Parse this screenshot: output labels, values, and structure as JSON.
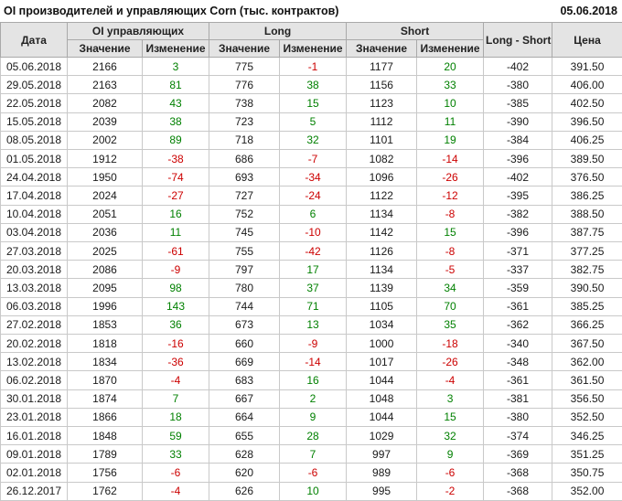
{
  "page": {
    "title": "OI производителей и управляющих Corn (тыс. контрактов)",
    "report_date": "05.06.2018"
  },
  "colors": {
    "positive": "#008000",
    "negative": "#cc0000",
    "header_bg": "#e4e4e4",
    "header_border": "#a9a9a9",
    "grid_border": "#c9c9c9",
    "text": "#1a1a1a"
  },
  "table": {
    "group_headers": {
      "date": "Дата",
      "oi": "OI управляющих",
      "long": "Long",
      "short": "Short",
      "long_short": "Long - Short",
      "price": "Цена"
    },
    "sub_headers": {
      "value": "Значение",
      "change": "Изменение"
    },
    "cell_names": [
      "date-cell",
      "oi-value-cell",
      "oi-change-cell",
      "long-value-cell",
      "long-change-cell",
      "short-value-cell",
      "short-change-cell",
      "long-short-cell",
      "price-cell"
    ],
    "change_column_indexes": [
      2,
      4,
      6
    ],
    "rows": [
      [
        "05.06.2018",
        "2166",
        "3",
        "775",
        "-1",
        "1177",
        "20",
        "-402",
        "391.50"
      ],
      [
        "29.05.2018",
        "2163",
        "81",
        "776",
        "38",
        "1156",
        "33",
        "-380",
        "406.00"
      ],
      [
        "22.05.2018",
        "2082",
        "43",
        "738",
        "15",
        "1123",
        "10",
        "-385",
        "402.50"
      ],
      [
        "15.05.2018",
        "2039",
        "38",
        "723",
        "5",
        "1112",
        "11",
        "-390",
        "396.50"
      ],
      [
        "08.05.2018",
        "2002",
        "89",
        "718",
        "32",
        "1101",
        "19",
        "-384",
        "406.25"
      ],
      [
        "01.05.2018",
        "1912",
        "-38",
        "686",
        "-7",
        "1082",
        "-14",
        "-396",
        "389.50"
      ],
      [
        "24.04.2018",
        "1950",
        "-74",
        "693",
        "-34",
        "1096",
        "-26",
        "-402",
        "376.50"
      ],
      [
        "17.04.2018",
        "2024",
        "-27",
        "727",
        "-24",
        "1122",
        "-12",
        "-395",
        "386.25"
      ],
      [
        "10.04.2018",
        "2051",
        "16",
        "752",
        "6",
        "1134",
        "-8",
        "-382",
        "388.50"
      ],
      [
        "03.04.2018",
        "2036",
        "11",
        "745",
        "-10",
        "1142",
        "15",
        "-396",
        "387.75"
      ],
      [
        "27.03.2018",
        "2025",
        "-61",
        "755",
        "-42",
        "1126",
        "-8",
        "-371",
        "377.25"
      ],
      [
        "20.03.2018",
        "2086",
        "-9",
        "797",
        "17",
        "1134",
        "-5",
        "-337",
        "382.75"
      ],
      [
        "13.03.2018",
        "2095",
        "98",
        "780",
        "37",
        "1139",
        "34",
        "-359",
        "390.50"
      ],
      [
        "06.03.2018",
        "1996",
        "143",
        "744",
        "71",
        "1105",
        "70",
        "-361",
        "385.25"
      ],
      [
        "27.02.2018",
        "1853",
        "36",
        "673",
        "13",
        "1034",
        "35",
        "-362",
        "366.25"
      ],
      [
        "20.02.2018",
        "1818",
        "-16",
        "660",
        "-9",
        "1000",
        "-18",
        "-340",
        "367.50"
      ],
      [
        "13.02.2018",
        "1834",
        "-36",
        "669",
        "-14",
        "1017",
        "-26",
        "-348",
        "362.00"
      ],
      [
        "06.02.2018",
        "1870",
        "-4",
        "683",
        "16",
        "1044",
        "-4",
        "-361",
        "361.50"
      ],
      [
        "30.01.2018",
        "1874",
        "7",
        "667",
        "2",
        "1048",
        "3",
        "-381",
        "356.50"
      ],
      [
        "23.01.2018",
        "1866",
        "18",
        "664",
        "9",
        "1044",
        "15",
        "-380",
        "352.50"
      ],
      [
        "16.01.2018",
        "1848",
        "59",
        "655",
        "28",
        "1029",
        "32",
        "-374",
        "346.25"
      ],
      [
        "09.01.2018",
        "1789",
        "33",
        "628",
        "7",
        "997",
        "9",
        "-369",
        "351.25"
      ],
      [
        "02.01.2018",
        "1756",
        "-6",
        "620",
        "-6",
        "989",
        "-6",
        "-368",
        "350.75"
      ],
      [
        "26.12.2017",
        "1762",
        "-4",
        "626",
        "10",
        "995",
        "-2",
        "-368",
        "352.00"
      ]
    ]
  }
}
